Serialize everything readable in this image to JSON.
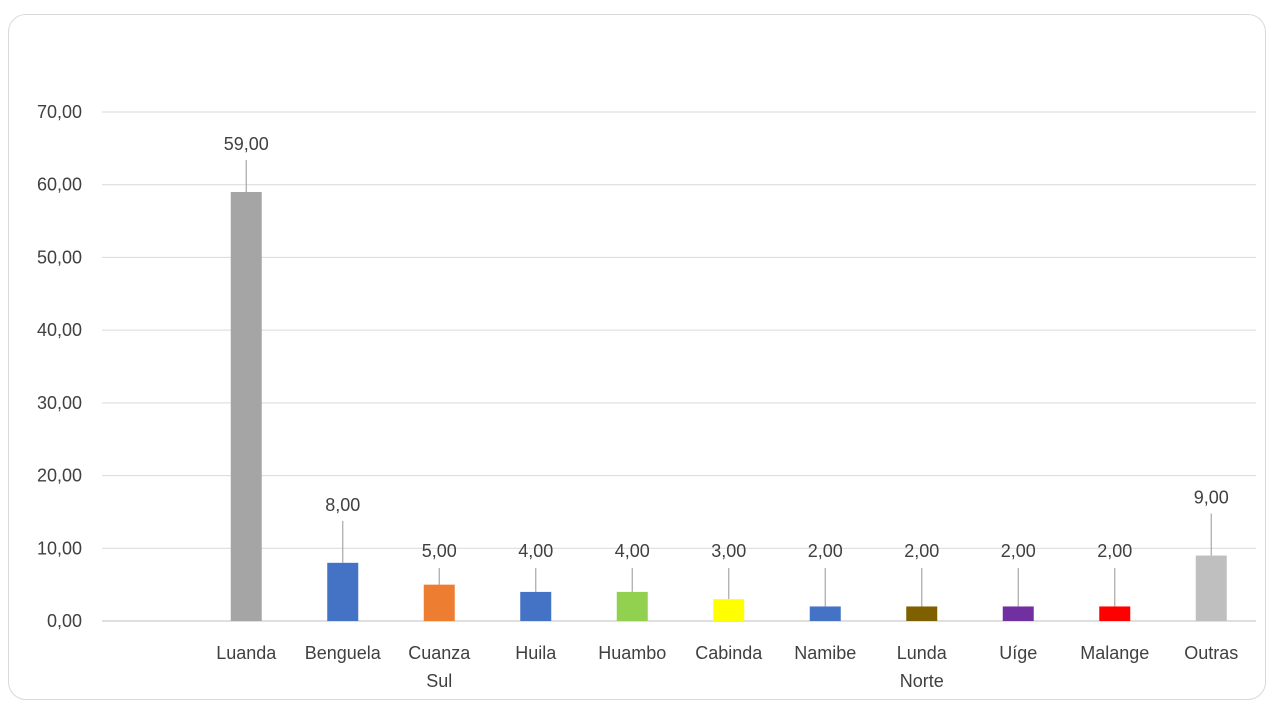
{
  "chart_data": {
    "type": "bar",
    "title": "",
    "xlabel": "",
    "ylabel": "",
    "ylim": [
      0,
      70
    ],
    "yticks": [
      "0,00",
      "10,00",
      "20,00",
      "30,00",
      "40,00",
      "50,00",
      "60,00",
      "70,00"
    ],
    "grid": true,
    "legend": "none",
    "categories": [
      [
        "Luanda"
      ],
      [
        "Benguela"
      ],
      [
        "Cuanza",
        "Sul"
      ],
      [
        "Huila"
      ],
      [
        "Huambo"
      ],
      [
        "Cabinda"
      ],
      [
        "Namibe"
      ],
      [
        "Lunda",
        "Norte"
      ],
      [
        "Uíge"
      ],
      [
        "Malange"
      ],
      [
        "Outras"
      ]
    ],
    "values": [
      59,
      8,
      5,
      4,
      4,
      3,
      2,
      2,
      2,
      2,
      9
    ],
    "data_labels": [
      "59,00",
      "8,00",
      "5,00",
      "4,00",
      "4,00",
      "3,00",
      "2,00",
      "2,00",
      "2,00",
      "2,00",
      "9,00"
    ],
    "colors": [
      "#a5a5a5",
      "#4472c4",
      "#ed7d31",
      "#4472c4",
      "#92d050",
      "#ffff00",
      "#4472c4",
      "#7f6000",
      "#7030a0",
      "#ff0000",
      "#bfbfbf"
    ]
  }
}
